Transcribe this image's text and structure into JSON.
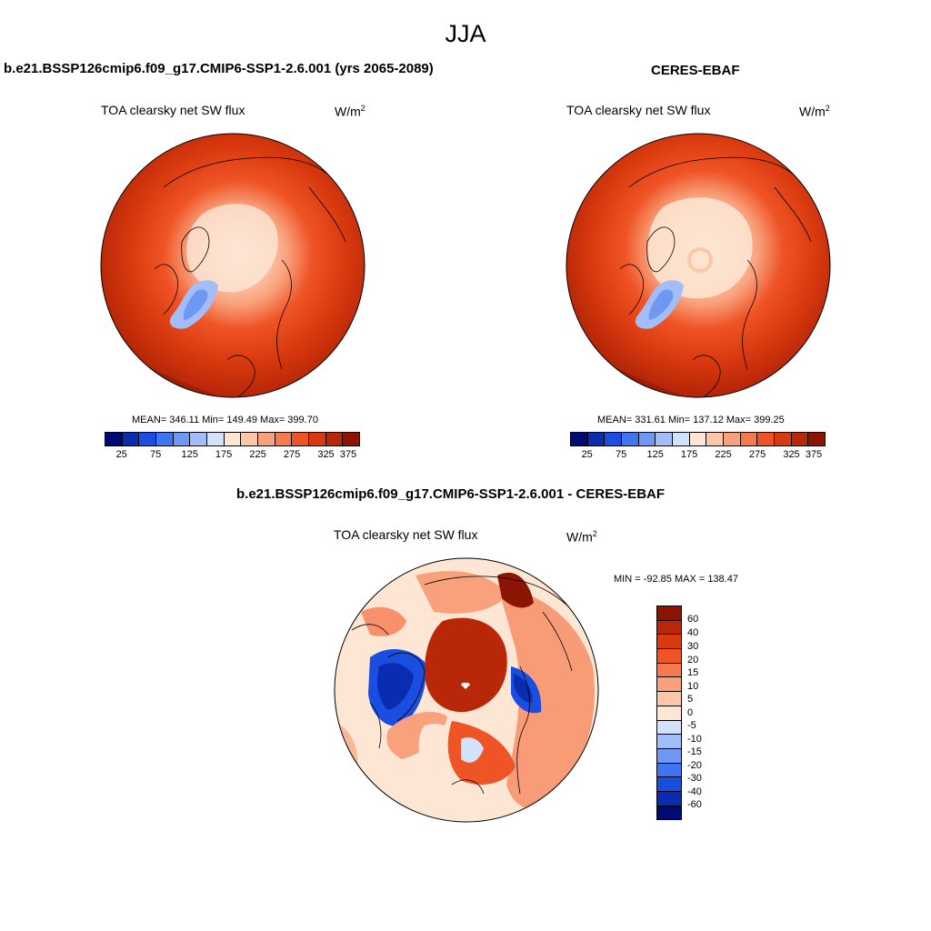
{
  "title": "JJA",
  "panels": [
    {
      "title": "b.e21.BSSP126cmip6.f09_g17.CMIP6-SSP1-2.6.001 (yrs 2065-2089)",
      "variable": "TOA clearsky net SW flux",
      "units_base": "W/m",
      "units_exp": "2",
      "stats": "MEAN= 346.11  Min= 149.49  Max= 399.70"
    },
    {
      "title": "CERES-EBAF",
      "variable": "TOA clearsky net SW flux",
      "units_base": "W/m",
      "units_exp": "2",
      "stats": "MEAN= 331.61  Min= 137.12  Max= 399.25"
    },
    {
      "title": "b.e21.BSSP126cmip6.f09_g17.CMIP6-SSP1-2.6.001 - CERES-EBAF",
      "variable": "TOA clearsky net SW flux",
      "units_base": "W/m",
      "units_exp": "2",
      "stats": "MIN = -92.85 MAX = 138.47"
    }
  ],
  "colorbar_abs": {
    "colors": [
      "#000a73",
      "#0a2cb0",
      "#1a4ee0",
      "#3f74f2",
      "#6f98f5",
      "#a2bdf7",
      "#d2e2f8",
      "#fde6d4",
      "#fbc7a8",
      "#f9a17c",
      "#f57a50",
      "#ef5426",
      "#d93a0f",
      "#b82808",
      "#8b1402"
    ],
    "tick_labels": [
      "25",
      "75",
      "125",
      "175",
      "225",
      "275",
      "325",
      "375"
    ]
  },
  "colorbar_diff": {
    "colors": [
      "#8b1402",
      "#b82808",
      "#d93a0f",
      "#ef5426",
      "#f57a50",
      "#f9a17c",
      "#fbc7a8",
      "#fde6d4",
      "#d2e2f8",
      "#a2bdf7",
      "#6f98f5",
      "#3f74f2",
      "#1a4ee0",
      "#0a2cb0",
      "#000a73"
    ],
    "tick_labels": [
      "60",
      "40",
      "30",
      "20",
      "15",
      "10",
      "5",
      "0",
      "-5",
      "-10",
      "-15",
      "-20",
      "-30",
      "-40",
      "-60"
    ]
  }
}
